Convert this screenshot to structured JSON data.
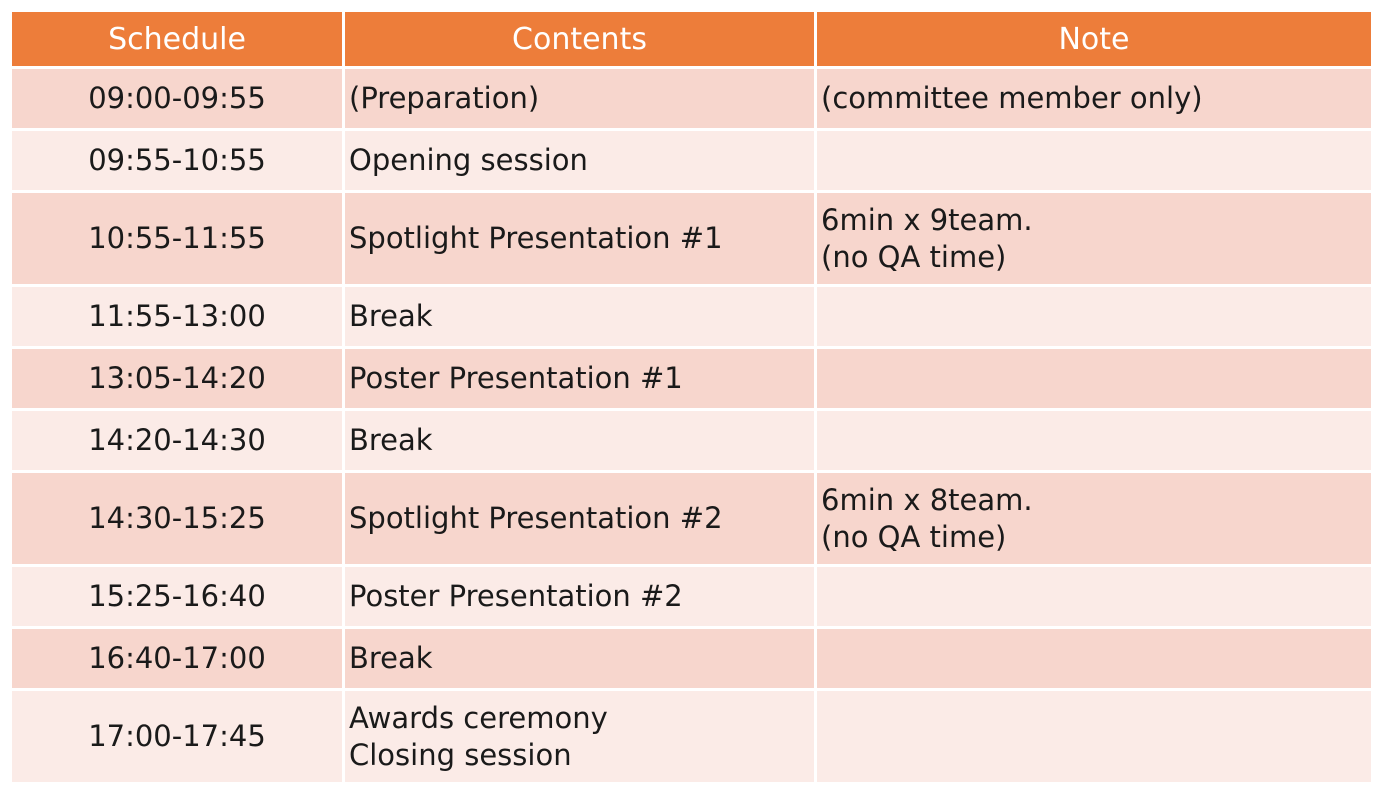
{
  "headers": {
    "schedule": "Schedule",
    "contents": "Contents",
    "note": "Note"
  },
  "rows": [
    {
      "time": "09:00-09:55",
      "contents": [
        "(Preparation)"
      ],
      "note": [
        "(committee member only)"
      ]
    },
    {
      "time": "09:55-10:55",
      "contents": [
        "Opening session"
      ],
      "note": []
    },
    {
      "time": "10:55-11:55",
      "contents": [
        "Spotlight Presentation #1"
      ],
      "note": [
        "6min x 9team.",
        "(no QA time)"
      ]
    },
    {
      "time": "11:55-13:00",
      "contents": [
        "Break"
      ],
      "note": []
    },
    {
      "time": "13:05-14:20",
      "contents": [
        "Poster Presentation #1"
      ],
      "note": []
    },
    {
      "time": "14:20-14:30",
      "contents": [
        "Break"
      ],
      "note": []
    },
    {
      "time": "14:30-15:25",
      "contents": [
        "Spotlight Presentation #2"
      ],
      "note": [
        "6min x 8team.",
        "(no QA time)"
      ]
    },
    {
      "time": "15:25-16:40",
      "contents": [
        "Poster Presentation #2"
      ],
      "note": []
    },
    {
      "time": "16:40-17:00",
      "contents": [
        "Break"
      ],
      "note": []
    },
    {
      "time": "17:00-17:45",
      "contents": [
        "Awards ceremony",
        "Closing session"
      ],
      "note": []
    }
  ],
  "colors": {
    "header": "#ed7d3a",
    "row_odd": "#f7d6cd",
    "row_even": "#fbebe7"
  }
}
